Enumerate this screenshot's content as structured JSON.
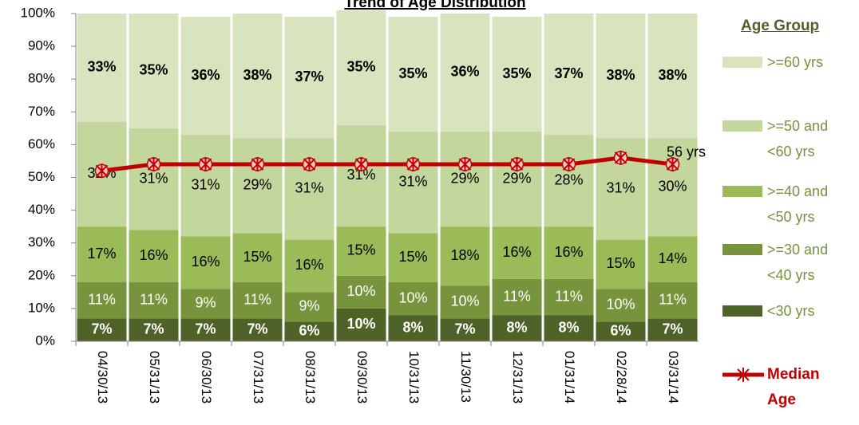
{
  "chart_data": {
    "type": "stacked_bar_line",
    "title": "Trend of Age Distribution",
    "legend_title": "Age Group",
    "categories": [
      "04/30/13",
      "05/31/13",
      "06/30/13",
      "07/31/13",
      "08/31/13",
      "09/30/13",
      "10/31/13",
      "11/30/13",
      "12/31/13",
      "01/31/14",
      "02/28/14",
      "03/31/14"
    ],
    "ylim": [
      0,
      100
    ],
    "yticks": [
      {
        "value": 0,
        "label": "0%"
      },
      {
        "value": 10,
        "label": "10%"
      },
      {
        "value": 20,
        "label": "20%"
      },
      {
        "value": 30,
        "label": "30%"
      },
      {
        "value": 40,
        "label": "40%"
      },
      {
        "value": 50,
        "label": "50%"
      },
      {
        "value": 60,
        "label": "60%"
      },
      {
        "value": 70,
        "label": "70%"
      },
      {
        "value": 80,
        "label": "80%"
      },
      {
        "value": 90,
        "label": "90%"
      },
      {
        "value": 100,
        "label": "100%"
      }
    ],
    "grid": false,
    "legend": "right",
    "series": [
      {
        "name": "<30 yrs",
        "color": "#4f6228",
        "label_color": "#ffffff",
        "bold": true,
        "values": [
          7,
          7,
          7,
          7,
          6,
          10,
          8,
          7,
          8,
          8,
          6,
          7
        ],
        "value_labels": [
          "7%",
          "7%",
          "7%",
          "7%",
          "6%",
          "10%",
          "8%",
          "7%",
          "8%",
          "8%",
          "6%",
          "7%"
        ]
      },
      {
        "name": ">=30 and <40 yrs",
        "color": "#77933c",
        "label_color": "#ffffff",
        "bold": false,
        "values": [
          11,
          11,
          9,
          11,
          9,
          10,
          10,
          10,
          11,
          11,
          10,
          11
        ],
        "value_labels": [
          "11%",
          "11%",
          "9%",
          "11%",
          "9%",
          "10%",
          "10%",
          "10%",
          "11%",
          "11%",
          "10%",
          "11%"
        ]
      },
      {
        "name": ">=40 and <50 yrs",
        "color": "#9bbb59",
        "label_color": "#000000",
        "bold": false,
        "values": [
          17,
          16,
          16,
          15,
          16,
          15,
          15,
          18,
          16,
          16,
          15,
          14
        ],
        "value_labels": [
          "17%",
          "16%",
          "16%",
          "15%",
          "16%",
          "15%",
          "15%",
          "18%",
          "16%",
          "16%",
          "15%",
          "14%"
        ]
      },
      {
        "name": ">=50 and <60 yrs",
        "color": "#c3d69b",
        "label_color": "#000000",
        "bold": false,
        "values": [
          32,
          31,
          31,
          29,
          31,
          31,
          31,
          29,
          29,
          28,
          31,
          30
        ],
        "value_labels": [
          "32%",
          "31%",
          "31%",
          "29%",
          "31%",
          "31%",
          "31%",
          "29%",
          "29%",
          "28%",
          "31%",
          "30%"
        ]
      },
      {
        "name": ">=60 yrs",
        "color": "#d7e4bd",
        "label_color": "#000000",
        "bold": true,
        "values": [
          33,
          35,
          36,
          38,
          37,
          35,
          35,
          36,
          35,
          37,
          38,
          38
        ],
        "value_labels": [
          "33%",
          "35%",
          "36%",
          "38%",
          "37%",
          "35%",
          "35%",
          "36%",
          "35%",
          "37%",
          "38%",
          "38%"
        ]
      }
    ],
    "line": {
      "name": "Median Age",
      "color": "#c00000",
      "values": [
        52,
        54,
        54,
        54,
        54,
        54,
        54,
        54,
        54,
        54,
        56,
        54
      ],
      "value_labels": [
        null,
        null,
        null,
        null,
        null,
        null,
        null,
        null,
        null,
        null,
        "56 yrs",
        null
      ]
    }
  }
}
